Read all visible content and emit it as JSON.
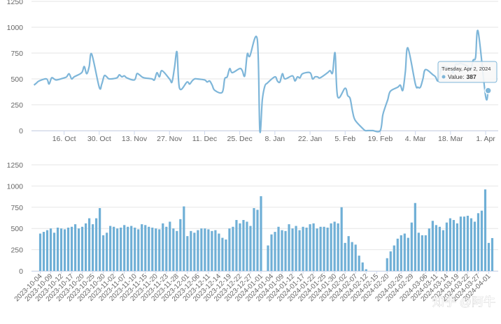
{
  "chart_data": [
    {
      "type": "line",
      "color": "#7eb6d9",
      "x": [
        "2023-10-04",
        "2023-10-05",
        "2023-10-06",
        "2023-10-09",
        "2023-10-10",
        "2023-10-11",
        "2023-10-12",
        "2023-10-13",
        "2023-10-16",
        "2023-10-17",
        "2023-10-18",
        "2023-10-19",
        "2023-10-20",
        "2023-10-23",
        "2023-10-24",
        "2023-10-25",
        "2023-10-26",
        "2023-10-27",
        "2023-10-30",
        "2023-10-31",
        "2023-11-01",
        "2023-11-02",
        "2023-11-03",
        "2023-11-06",
        "2023-11-07",
        "2023-11-08",
        "2023-11-09",
        "2023-11-10",
        "2023-11-13",
        "2023-11-14",
        "2023-11-15",
        "2023-11-16",
        "2023-11-17",
        "2023-11-20",
        "2023-11-21",
        "2023-11-22",
        "2023-11-23",
        "2023-11-24",
        "2023-11-27",
        "2023-11-28",
        "2023-11-29",
        "2023-11-30",
        "2023-12-01",
        "2023-12-04",
        "2023-12-05",
        "2023-12-06",
        "2023-12-07",
        "2023-12-08",
        "2023-12-11",
        "2023-12-12",
        "2023-12-13",
        "2023-12-14",
        "2023-12-15",
        "2023-12-18",
        "2023-12-19",
        "2023-12-20",
        "2023-12-21",
        "2023-12-22",
        "2023-12-25",
        "2023-12-26",
        "2023-12-27",
        "2023-12-28",
        "2023-12-29",
        "2024-01-01",
        "2024-01-02",
        "2024-01-03",
        "2024-01-04",
        "2024-01-05",
        "2024-01-08",
        "2024-01-09",
        "2024-01-10",
        "2024-01-11",
        "2024-01-12",
        "2024-01-15",
        "2024-01-16",
        "2024-01-17",
        "2024-01-18",
        "2024-01-19",
        "2024-01-22",
        "2024-01-23",
        "2024-01-24",
        "2024-01-25",
        "2024-01-26",
        "2024-01-29",
        "2024-01-30",
        "2024-01-31",
        "2024-02-01",
        "2024-02-02",
        "2024-02-05",
        "2024-02-06",
        "2024-02-07",
        "2024-02-08",
        "2024-02-09",
        "2024-02-12",
        "2024-02-13",
        "2024-02-14",
        "2024-02-15",
        "2024-02-16",
        "2024-02-19",
        "2024-02-20",
        "2024-02-21",
        "2024-02-22",
        "2024-02-23",
        "2024-02-26",
        "2024-02-27",
        "2024-02-28",
        "2024-02-29",
        "2024-03-01",
        "2024-03-04",
        "2024-03-05",
        "2024-03-06",
        "2024-03-07",
        "2024-03-08",
        "2024-03-11",
        "2024-03-12",
        "2024-03-13",
        "2024-03-14",
        "2024-03-15",
        "2024-03-18",
        "2024-03-19",
        "2024-03-20",
        "2024-03-21",
        "2024-03-22",
        "2024-03-25",
        "2024-03-26",
        "2024-03-27",
        "2024-03-28",
        "2024-03-29",
        "2024-04-01",
        "2024-04-02"
      ],
      "values": [
        440,
        460,
        480,
        500,
        450,
        510,
        500,
        490,
        510,
        520,
        550,
        500,
        520,
        560,
        620,
        550,
        620,
        740,
        420,
        450,
        530,
        520,
        500,
        510,
        540,
        520,
        530,
        510,
        490,
        550,
        540,
        520,
        510,
        500,
        490,
        560,
        520,
        580,
        500,
        470,
        610,
        760,
        410,
        470,
        450,
        480,
        500,
        500,
        490,
        470,
        480,
        440,
        390,
        370,
        500,
        520,
        600,
        560,
        600,
        580,
        530,
        740,
        720,
        880,
        0,
        300,
        430,
        460,
        520,
        480,
        470,
        550,
        500,
        530,
        480,
        520,
        510,
        550,
        560,
        500,
        520,
        520,
        510,
        560,
        580,
        560,
        750,
        330,
        410,
        340,
        310,
        180,
        100,
        20,
        0,
        0,
        0,
        0,
        0,
        150,
        230,
        300,
        380,
        420,
        440,
        390,
        570,
        800,
        450,
        420,
        420,
        500,
        590,
        540,
        520,
        480,
        570,
        620,
        600,
        560,
        640,
        640,
        650,
        620,
        580,
        680,
        710,
        960,
        330,
        387
      ],
      "xlim": [
        "2023-10-03",
        "2024-04-06"
      ],
      "xticks": [
        {
          "value": "2023-10-16",
          "label": "16. Oct"
        },
        {
          "value": "2023-10-30",
          "label": "30. Oct"
        },
        {
          "value": "2023-11-13",
          "label": "13. Nov"
        },
        {
          "value": "2023-11-27",
          "label": "27. Nov"
        },
        {
          "value": "2023-12-11",
          "label": "11. Dec"
        },
        {
          "value": "2023-12-25",
          "label": "25. Dec"
        },
        {
          "value": "2024-01-08",
          "label": "8. Jan"
        },
        {
          "value": "2024-01-22",
          "label": "22. Jan"
        },
        {
          "value": "2024-02-05",
          "label": "5. Feb"
        },
        {
          "value": "2024-02-19",
          "label": "19. Feb"
        },
        {
          "value": "2024-03-04",
          "label": "4. Mar"
        },
        {
          "value": "2024-03-18",
          "label": "18. Mar"
        },
        {
          "value": "2024-04-01",
          "label": "1. Apr"
        }
      ],
      "ylim": [
        0,
        1250
      ],
      "yticks": [
        0,
        250,
        500,
        750,
        1000,
        1250
      ],
      "grid": true,
      "tooltip": {
        "date": "Tuesday, Apr 2, 2024",
        "label": "Value:"
      }
    },
    {
      "type": "bar",
      "color": "#6fafd6",
      "categories": [
        "2023-10-04",
        null,
        null,
        "2023-10-09",
        null,
        null,
        "2023-10-12",
        null,
        null,
        "2023-10-17",
        null,
        null,
        "2023-10-20",
        null,
        null,
        "2023-10-25",
        null,
        null,
        "2023-10-30",
        null,
        null,
        "2023-11-02",
        null,
        null,
        "2023-11-07",
        null,
        null,
        "2023-11-10",
        null,
        null,
        "2023-11-15",
        null,
        null,
        "2023-11-20",
        null,
        null,
        "2023-11-23",
        null,
        null,
        "2023-11-28",
        null,
        null,
        "2023-12-01",
        null,
        null,
        "2023-12-06",
        null,
        null,
        "2023-12-11",
        null,
        null,
        "2023-12-14",
        null,
        null,
        "2023-12-19",
        null,
        null,
        "2023-12-22",
        null,
        null,
        "2023-12-27",
        null,
        null,
        "2024-01-01",
        null,
        null,
        "2024-01-04",
        null,
        null,
        "2024-01-09",
        null,
        null,
        "2024-01-12",
        null,
        null,
        "2024-01-17",
        null,
        null,
        "2024-01-22",
        null,
        null,
        "2024-01-25",
        null,
        null,
        "2024-01-30",
        null,
        null,
        "2024-02-02",
        null,
        null,
        "2024-02-07",
        null,
        null,
        "2024-02-12",
        null,
        null,
        "2024-02-15",
        null,
        null,
        "2024-02-20",
        null,
        null,
        null,
        "2024-02-26",
        null,
        null,
        "2024-02-29",
        null,
        null,
        null,
        "2024-03-06",
        null,
        null,
        "2024-03-11",
        null,
        null,
        "2024-03-14",
        null,
        null,
        "2024-03-19",
        null,
        null,
        "2024-03-22",
        null,
        null,
        "2024-03-27",
        null,
        null,
        "2024-04-01",
        null
      ],
      "values": [
        440,
        460,
        480,
        500,
        450,
        510,
        500,
        490,
        510,
        520,
        550,
        500,
        520,
        560,
        620,
        550,
        620,
        740,
        420,
        450,
        530,
        520,
        500,
        510,
        540,
        520,
        530,
        510,
        490,
        550,
        540,
        520,
        510,
        500,
        490,
        560,
        520,
        580,
        500,
        470,
        610,
        760,
        410,
        470,
        450,
        480,
        500,
        500,
        490,
        470,
        480,
        440,
        390,
        370,
        500,
        520,
        600,
        560,
        600,
        580,
        530,
        740,
        720,
        880,
        0,
        300,
        430,
        460,
        520,
        480,
        470,
        550,
        500,
        530,
        480,
        520,
        510,
        550,
        560,
        500,
        520,
        520,
        510,
        560,
        580,
        560,
        750,
        330,
        410,
        340,
        310,
        180,
        100,
        20,
        0,
        0,
        0,
        0,
        0,
        150,
        230,
        300,
        380,
        420,
        440,
        390,
        570,
        800,
        450,
        420,
        420,
        500,
        590,
        540,
        520,
        480,
        570,
        620,
        600,
        560,
        640,
        640,
        650,
        620,
        580,
        680,
        710,
        960,
        330,
        387
      ],
      "ylim": [
        0,
        1250
      ],
      "yticks": [
        0,
        250,
        500,
        750,
        1000,
        1250
      ],
      "grid": true
    }
  ],
  "watermark": "知乎 @阿牛"
}
